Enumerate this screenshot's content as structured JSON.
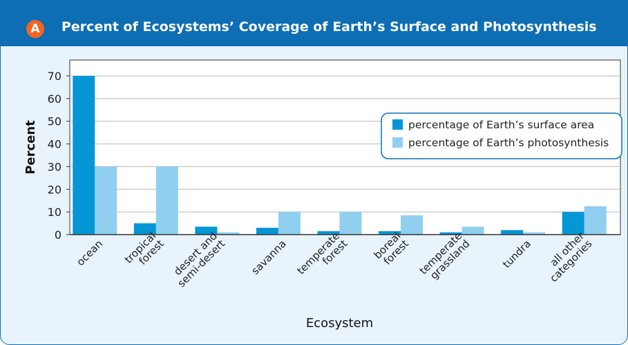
{
  "figure": {
    "badge": "A",
    "title": "Percent of Ecosystems’ Coverage of Earth’s Surface and Photosynthesis"
  },
  "chart_data": {
    "type": "bar",
    "xlabel": "Ecosystem",
    "ylabel": "Percent",
    "ylim": [
      0,
      77
    ],
    "yticks": [
      0,
      10,
      20,
      30,
      40,
      50,
      60,
      70
    ],
    "grid": true,
    "legend_position": "right",
    "categories": [
      [
        "ocean"
      ],
      [
        "tropical",
        "forest"
      ],
      [
        "desert and",
        "semi-desert"
      ],
      [
        "savanna"
      ],
      [
        "temperate",
        "forest"
      ],
      [
        "boreal",
        "forest"
      ],
      [
        "temperate",
        "grassland"
      ],
      [
        "tundra"
      ],
      [
        "all other",
        "categories"
      ]
    ],
    "series": [
      {
        "name": "percentage of Earth’s surface area",
        "color": "#0596d6",
        "values": [
          70,
          5,
          3.5,
          3,
          1.5,
          1.5,
          1,
          2,
          10
        ]
      },
      {
        "name": "percentage of Earth’s photosynthesis",
        "color": "#90cff0",
        "values": [
          30,
          30,
          1,
          10,
          10,
          8.5,
          3.5,
          1,
          12.5
        ]
      }
    ]
  }
}
